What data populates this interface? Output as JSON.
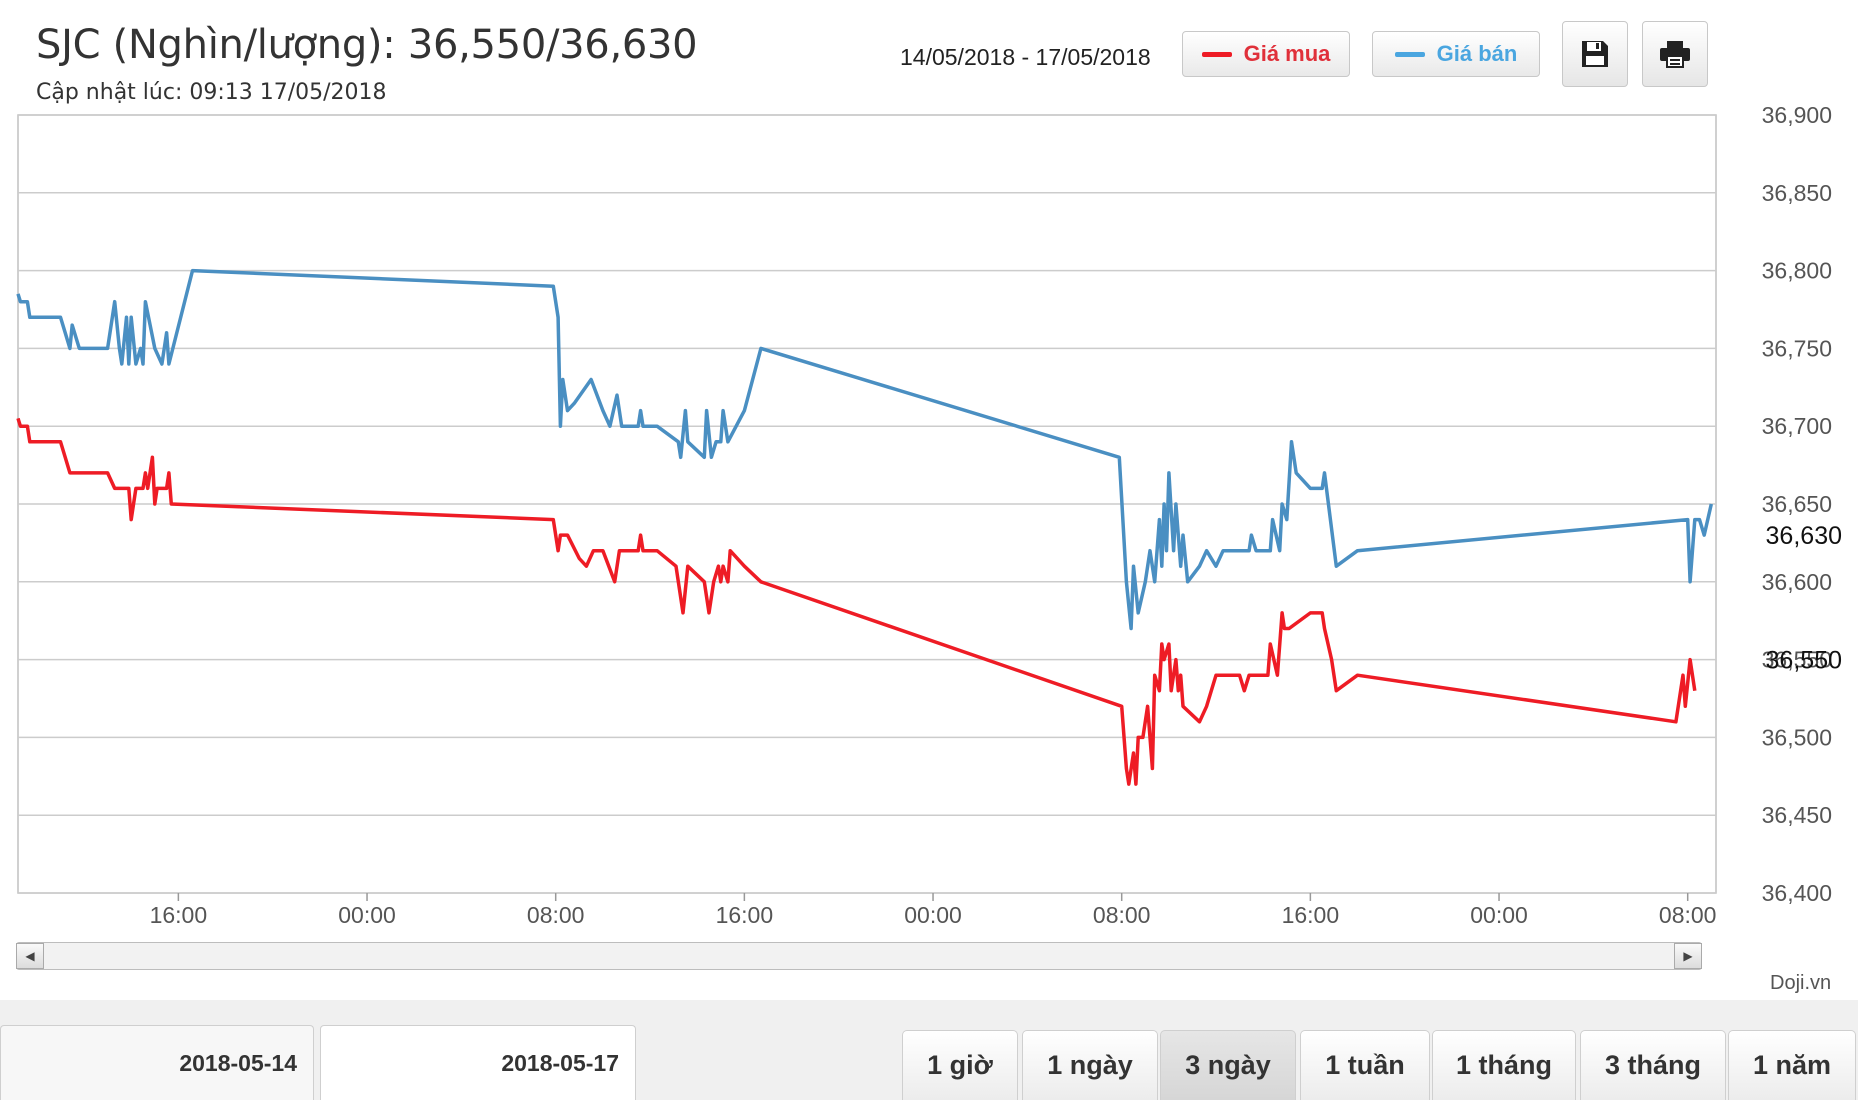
{
  "header": {
    "title": "SJC (Nghìn/lượng): 36,550/36,630",
    "updated": "Cập nhật lúc: 09:13 17/05/2018",
    "date_range": "14/05/2018 - 17/05/2018",
    "legend_buy": "Giá mua",
    "legend_sell": "Giá bán"
  },
  "toolbar": {
    "save_icon": "floppy-disk-icon",
    "print_icon": "printer-icon"
  },
  "colors": {
    "buy": "#ee1c25",
    "sell": "#4a8fc2",
    "grid": "#cccccc"
  },
  "chart_data": {
    "type": "line",
    "title": "SJC (Nghìn/lượng): 36,550/36,630",
    "xlabel": "",
    "ylabel": "",
    "ylim": [
      36400,
      36900
    ],
    "yticks": [
      "36,400",
      "36,450",
      "36,500",
      "36,550",
      "36,600",
      "36,650",
      "36,700",
      "36,750",
      "36,800",
      "36,850",
      "36,900"
    ],
    "xticks": [
      {
        "t": 16,
        "label": "16:00"
      },
      {
        "t": 24,
        "label": "00:00"
      },
      {
        "t": 32,
        "label": "08:00"
      },
      {
        "t": 40,
        "label": "16:00"
      },
      {
        "t": 48,
        "label": "00:00"
      },
      {
        "t": 56,
        "label": "08:00"
      },
      {
        "t": 64,
        "label": "16:00"
      },
      {
        "t": 72,
        "label": "00:00"
      },
      {
        "t": 80,
        "label": "08:00"
      }
    ],
    "xlim": [
      9.2,
      81.2
    ],
    "current": {
      "sell": 36630,
      "buy": 36550,
      "sell_label": "36,630",
      "buy_label": "36,550"
    },
    "series": [
      {
        "name": "Giá bán",
        "points": [
          [
            9.2,
            36785
          ],
          [
            9.3,
            36780
          ],
          [
            9.6,
            36780
          ],
          [
            9.7,
            36770
          ],
          [
            11.0,
            36770
          ],
          [
            11.2,
            36760
          ],
          [
            11.4,
            36750
          ],
          [
            11.5,
            36765
          ],
          [
            11.8,
            36750
          ],
          [
            13.0,
            36750
          ],
          [
            13.3,
            36780
          ],
          [
            13.5,
            36750
          ],
          [
            13.6,
            36740
          ],
          [
            13.8,
            36770
          ],
          [
            13.9,
            36740
          ],
          [
            14.0,
            36770
          ],
          [
            14.2,
            36740
          ],
          [
            14.4,
            36750
          ],
          [
            14.5,
            36740
          ],
          [
            14.6,
            36780
          ],
          [
            15.0,
            36750
          ],
          [
            15.3,
            36740
          ],
          [
            15.5,
            36760
          ],
          [
            15.6,
            36740
          ],
          [
            16.6,
            36800
          ],
          [
            31.9,
            36790
          ],
          [
            32.1,
            36770
          ],
          [
            32.2,
            36700
          ],
          [
            32.3,
            36730
          ],
          [
            32.5,
            36710
          ],
          [
            32.8,
            36715
          ],
          [
            33.5,
            36730
          ],
          [
            34.0,
            36710
          ],
          [
            34.3,
            36700
          ],
          [
            34.6,
            36720
          ],
          [
            34.8,
            36700
          ],
          [
            35.5,
            36700
          ],
          [
            35.6,
            36710
          ],
          [
            35.7,
            36700
          ],
          [
            36.3,
            36700
          ],
          [
            37.2,
            36690
          ],
          [
            37.3,
            36680
          ],
          [
            37.5,
            36710
          ],
          [
            37.6,
            36690
          ],
          [
            38.3,
            36680
          ],
          [
            38.4,
            36710
          ],
          [
            38.6,
            36680
          ],
          [
            38.8,
            36690
          ],
          [
            39.0,
            36690
          ],
          [
            39.1,
            36710
          ],
          [
            39.3,
            36690
          ],
          [
            40.0,
            36710
          ],
          [
            40.7,
            36750
          ],
          [
            55.9,
            36680
          ],
          [
            56.2,
            36600
          ],
          [
            56.4,
            36570
          ],
          [
            56.5,
            36610
          ],
          [
            56.7,
            36580
          ],
          [
            57.0,
            36600
          ],
          [
            57.2,
            36620
          ],
          [
            57.4,
            36600
          ],
          [
            57.6,
            36640
          ],
          [
            57.7,
            36610
          ],
          [
            57.8,
            36650
          ],
          [
            57.9,
            36620
          ],
          [
            58.0,
            36670
          ],
          [
            58.2,
            36620
          ],
          [
            58.3,
            36650
          ],
          [
            58.5,
            36610
          ],
          [
            58.6,
            36630
          ],
          [
            58.8,
            36600
          ],
          [
            59.3,
            36610
          ],
          [
            59.6,
            36620
          ],
          [
            60.0,
            36610
          ],
          [
            60.3,
            36620
          ],
          [
            61.4,
            36620
          ],
          [
            61.5,
            36630
          ],
          [
            61.7,
            36620
          ],
          [
            62.3,
            36620
          ],
          [
            62.4,
            36640
          ],
          [
            62.7,
            36620
          ],
          [
            62.8,
            36650
          ],
          [
            63.0,
            36640
          ],
          [
            63.2,
            36690
          ],
          [
            63.4,
            36670
          ],
          [
            64.0,
            36660
          ],
          [
            64.5,
            36660
          ],
          [
            64.6,
            36670
          ],
          [
            65.1,
            36610
          ],
          [
            66.0,
            36620
          ],
          [
            80.0,
            36640
          ],
          [
            80.1,
            36600
          ],
          [
            80.3,
            36640
          ],
          [
            80.5,
            36640
          ],
          [
            80.7,
            36630
          ],
          [
            81.0,
            36650
          ]
        ]
      },
      {
        "name": "Giá mua",
        "points": [
          [
            9.2,
            36705
          ],
          [
            9.3,
            36700
          ],
          [
            9.6,
            36700
          ],
          [
            9.7,
            36690
          ],
          [
            11.0,
            36690
          ],
          [
            11.2,
            36680
          ],
          [
            11.4,
            36670
          ],
          [
            13.0,
            36670
          ],
          [
            13.3,
            36660
          ],
          [
            13.9,
            36660
          ],
          [
            14.0,
            36640
          ],
          [
            14.2,
            36660
          ],
          [
            14.5,
            36660
          ],
          [
            14.6,
            36670
          ],
          [
            14.7,
            36660
          ],
          [
            14.9,
            36680
          ],
          [
            15.0,
            36650
          ],
          [
            15.1,
            36660
          ],
          [
            15.5,
            36660
          ],
          [
            15.6,
            36670
          ],
          [
            15.7,
            36650
          ],
          [
            31.9,
            36640
          ],
          [
            32.1,
            36620
          ],
          [
            32.2,
            36630
          ],
          [
            32.5,
            36630
          ],
          [
            33.0,
            36615
          ],
          [
            33.3,
            36610
          ],
          [
            33.6,
            36620
          ],
          [
            34.0,
            36620
          ],
          [
            34.5,
            36600
          ],
          [
            34.7,
            36620
          ],
          [
            35.5,
            36620
          ],
          [
            35.6,
            36630
          ],
          [
            35.7,
            36620
          ],
          [
            36.3,
            36620
          ],
          [
            37.1,
            36610
          ],
          [
            37.4,
            36580
          ],
          [
            37.6,
            36610
          ],
          [
            38.3,
            36600
          ],
          [
            38.5,
            36580
          ],
          [
            38.7,
            36600
          ],
          [
            38.9,
            36610
          ],
          [
            39.0,
            36600
          ],
          [
            39.1,
            36610
          ],
          [
            39.3,
            36600
          ],
          [
            39.4,
            36620
          ],
          [
            40.0,
            36610
          ],
          [
            40.7,
            36600
          ],
          [
            56.0,
            36520
          ],
          [
            56.2,
            36480
          ],
          [
            56.3,
            36470
          ],
          [
            56.5,
            36490
          ],
          [
            56.6,
            36470
          ],
          [
            56.7,
            36500
          ],
          [
            56.9,
            36500
          ],
          [
            57.1,
            36520
          ],
          [
            57.3,
            36480
          ],
          [
            57.4,
            36540
          ],
          [
            57.6,
            36530
          ],
          [
            57.7,
            36560
          ],
          [
            57.8,
            36550
          ],
          [
            58.0,
            36560
          ],
          [
            58.1,
            36530
          ],
          [
            58.3,
            36550
          ],
          [
            58.4,
            36530
          ],
          [
            58.5,
            36540
          ],
          [
            58.6,
            36520
          ],
          [
            59.3,
            36510
          ],
          [
            59.6,
            36520
          ],
          [
            60.0,
            36540
          ],
          [
            61.0,
            36540
          ],
          [
            61.2,
            36530
          ],
          [
            61.4,
            36540
          ],
          [
            62.2,
            36540
          ],
          [
            62.3,
            36560
          ],
          [
            62.6,
            36540
          ],
          [
            62.8,
            36580
          ],
          [
            62.9,
            36570
          ],
          [
            63.1,
            36570
          ],
          [
            64.0,
            36580
          ],
          [
            64.5,
            36580
          ],
          [
            64.6,
            36570
          ],
          [
            64.9,
            36550
          ],
          [
            65.1,
            36530
          ],
          [
            66.0,
            36540
          ],
          [
            79.5,
            36510
          ],
          [
            79.8,
            36540
          ],
          [
            79.9,
            36520
          ],
          [
            80.1,
            36550
          ],
          [
            80.3,
            36530
          ]
        ]
      }
    ]
  },
  "scrollbar": {
    "left_arrow": "◀",
    "right_arrow": "▶"
  },
  "credit": "Doji.vn",
  "navigator": {
    "from_date": "2018-05-14",
    "to_date": "2018-05-17"
  },
  "periods": [
    {
      "label": "1 giờ"
    },
    {
      "label": "1 ngày"
    },
    {
      "label": "3 ngày",
      "active": true
    },
    {
      "label": "1 tuần"
    },
    {
      "label": "1 tháng"
    },
    {
      "label": "3 tháng"
    },
    {
      "label": "1 năm"
    }
  ]
}
